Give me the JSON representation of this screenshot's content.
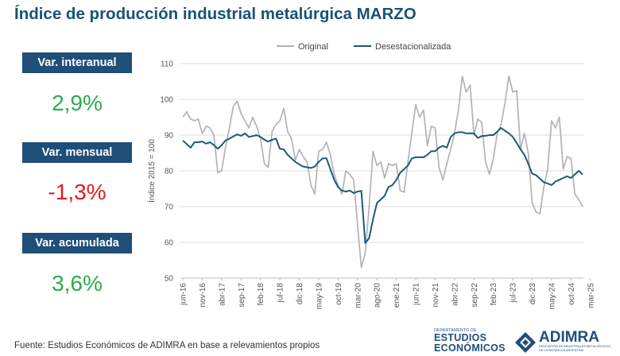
{
  "header": {
    "title": "Índice de producción industrial metalúrgica MARZO"
  },
  "kpis": [
    {
      "label": "Var. interanual",
      "value": "2,9%",
      "color": "#2eab4e"
    },
    {
      "label": "Var. mensual",
      "value": "-1,3%",
      "color": "#e21b1b"
    },
    {
      "label": "Var. acumulada",
      "value": "3,6%",
      "color": "#2eab4e"
    }
  ],
  "footer": {
    "source": "Fuente: Estudios Económicos de ADIMRA en base a relevamientos propios"
  },
  "logos": {
    "ee_small": "DEPARTAMENTO DE",
    "ee_line1": "ESTUDIOS",
    "ee_line2": "ECONÓMICOS",
    "adimra": "ADIMRA",
    "adimra_sub": "ASOCIACIÓN DE INDUSTRIALES METALÚRGICOS DE LA REPÚBLICA ARGENTINA"
  },
  "colors": {
    "title": "#1a5276",
    "kpi_bg": "#1f4e79",
    "original": "#b3b3b3",
    "desest": "#1d5a7a"
  },
  "chart_data": {
    "type": "line",
    "title": "",
    "xlabel": "",
    "ylabel": "Índice 2015 = 100",
    "ylim": [
      50,
      110
    ],
    "yticks": [
      50,
      60,
      70,
      80,
      90,
      100,
      110
    ],
    "grid": "horizontal",
    "legend": "top-center",
    "x_start": "2016-06",
    "x_end": "2025-03",
    "tick_labels": [
      "jun-16",
      "nov-16",
      "abr-17",
      "sep-17",
      "feb-18",
      "jul-18",
      "dic-18",
      "may-19",
      "oct-19",
      "mar-20",
      "ago-20",
      "ene-21",
      "jun-21",
      "nov-21",
      "abr-22",
      "sep-22",
      "feb-23",
      "jul-23",
      "dic-23",
      "may-24",
      "oct-24",
      "mar-25"
    ],
    "series": [
      {
        "name": "Original",
        "values": [
          95,
          96.5,
          94.5,
          94,
          94.5,
          90.5,
          92.5,
          92,
          90,
          79.5,
          80,
          86.5,
          92,
          98,
          99.5,
          96,
          94,
          92,
          95,
          92.5,
          89,
          82,
          81,
          91,
          93,
          94,
          97.5,
          91,
          89,
          83,
          86,
          84,
          82.5,
          76,
          73.5,
          85.5,
          86,
          88,
          84.5,
          79,
          76,
          73.5,
          80,
          79,
          77.5,
          65,
          53,
          57,
          70,
          85.5,
          81.5,
          82.5,
          78,
          82,
          81.5,
          82,
          74.5,
          74,
          82.5,
          90.5,
          98.5,
          95,
          97,
          87,
          92.5,
          92,
          81,
          77.5,
          82,
          86,
          90.5,
          97,
          106.5,
          102,
          104,
          90,
          94.5,
          93.5,
          82.5,
          79,
          83.5,
          90.5,
          93,
          99,
          106.5,
          102,
          102.5,
          86,
          90.5,
          85,
          71,
          68.5,
          68,
          75.5,
          80.5,
          94,
          92,
          95,
          80.5,
          84,
          83.5,
          73.5,
          72,
          70
        ],
        "color": "#b3b3b3"
      },
      {
        "name": "Desestacionalizada",
        "values": [
          88.5,
          87.5,
          86.5,
          88,
          88,
          88.2,
          87.6,
          88,
          87.2,
          86.2,
          87.2,
          88.5,
          89,
          89.6,
          90.2,
          89.8,
          90.5,
          89.5,
          89.7,
          90,
          89.5,
          88.7,
          88.2,
          88.7,
          89,
          86.2,
          86,
          84.5,
          83.5,
          82.5,
          81.8,
          81.2,
          81,
          80.8,
          81.2,
          82.5,
          83.5,
          83.5,
          80.5,
          77.5,
          75.5,
          74.5,
          74.2,
          74.5,
          73.8,
          74.2,
          74.4,
          59.8,
          61.2,
          66.5,
          71,
          72,
          73,
          75.5,
          76,
          77.5,
          79.5,
          80.5,
          81.5,
          83.5,
          83.8,
          83.8,
          83.8,
          84.5,
          85.5,
          85.5,
          86.5,
          87,
          86.5,
          89.5,
          90.5,
          90.8,
          90.8,
          90.5,
          90.5,
          90.5,
          89.2,
          89.7,
          89.8,
          90,
          90,
          91,
          92,
          91.2,
          90.5,
          89.5,
          87.8,
          86,
          84.5,
          82,
          79.2,
          78.8,
          77.8,
          76.8,
          76.5,
          76,
          77,
          77.5,
          78,
          78.5,
          78,
          79,
          80,
          79
        ],
        "color": "#1d5a7a"
      }
    ]
  }
}
